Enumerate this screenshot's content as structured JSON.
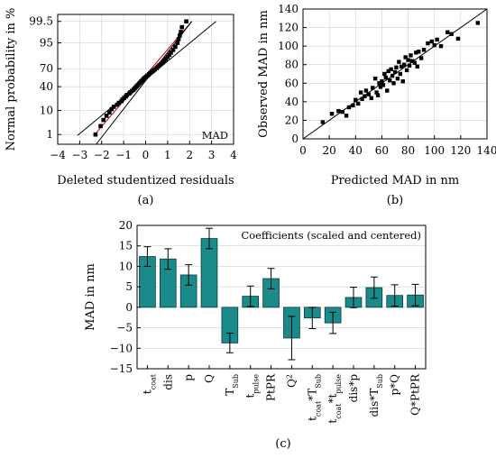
{
  "colors": {
    "bar_fill": "#1b8a8a",
    "bar_stroke": "#0a3a3a",
    "marker": "#000000",
    "fit_line_red": "#cc0000",
    "band_line": "#000000",
    "grid": "#d0d0d0"
  },
  "chart_data": [
    {
      "id": "a",
      "type": "scatter",
      "caption": "(a)",
      "xlabel": "Deleted studentized residuals",
      "ylabel": "Normal probability in %",
      "annotation": "MAD",
      "xlim": [
        -4,
        4
      ],
      "xticks": [
        -4,
        -3,
        -2,
        -1,
        0,
        1,
        2,
        3,
        4
      ],
      "yticks": [
        {
          "label": "1",
          "p": 1
        },
        {
          "label": "10",
          "p": 10
        },
        {
          "label": "40",
          "p": 40
        },
        {
          "label": "70",
          "p": 70
        },
        {
          "label": "95",
          "p": 95
        },
        {
          "label": "99.5",
          "p": 99.5
        }
      ],
      "y_scale": "normal-probability",
      "grid": true,
      "points": [
        [
          -2.28,
          1
        ],
        [
          -2.05,
          2.5
        ],
        [
          -1.92,
          4.5
        ],
        [
          -1.78,
          6.5
        ],
        [
          -1.65,
          8.5
        ],
        [
          -1.55,
          11
        ],
        [
          -1.45,
          13
        ],
        [
          -1.3,
          15
        ],
        [
          -1.22,
          17
        ],
        [
          -1.1,
          19
        ],
        [
          -1.05,
          21
        ],
        [
          -0.98,
          23
        ],
        [
          -0.9,
          25
        ],
        [
          -0.85,
          27
        ],
        [
          -0.75,
          29
        ],
        [
          -0.7,
          31
        ],
        [
          -0.62,
          33
        ],
        [
          -0.55,
          35
        ],
        [
          -0.5,
          37
        ],
        [
          -0.45,
          39
        ],
        [
          -0.4,
          41
        ],
        [
          -0.35,
          43
        ],
        [
          -0.3,
          45
        ],
        [
          -0.25,
          47
        ],
        [
          -0.2,
          49
        ],
        [
          -0.15,
          51
        ],
        [
          -0.1,
          53
        ],
        [
          -0.05,
          55
        ],
        [
          0.02,
          57
        ],
        [
          0.08,
          59
        ],
        [
          0.15,
          61
        ],
        [
          0.2,
          63
        ],
        [
          0.28,
          65
        ],
        [
          0.35,
          67
        ],
        [
          0.42,
          69
        ],
        [
          0.5,
          71
        ],
        [
          0.55,
          73
        ],
        [
          0.62,
          75
        ],
        [
          0.7,
          77
        ],
        [
          0.78,
          79
        ],
        [
          0.85,
          81
        ],
        [
          0.92,
          83
        ],
        [
          1.0,
          85
        ],
        [
          1.08,
          87
        ],
        [
          1.15,
          89
        ],
        [
          1.25,
          91
        ],
        [
          1.35,
          93
        ],
        [
          1.45,
          95
        ],
        [
          1.5,
          96.5
        ],
        [
          1.55,
          97.5
        ],
        [
          1.6,
          98.3
        ],
        [
          1.65,
          99.0
        ],
        [
          1.85,
          99.5
        ]
      ],
      "lines": [
        {
          "style": "black",
          "x": [
            -3.1,
            3.2
          ],
          "p": [
            0.9,
            99.5
          ]
        },
        {
          "style": "red",
          "x": [
            -2.35,
            2.1
          ],
          "p": [
            0.9,
            99.5
          ]
        },
        {
          "style": "black",
          "x": [
            -2.25,
            2.1
          ],
          "p": [
            0.3,
            99.5
          ]
        }
      ]
    },
    {
      "id": "b",
      "type": "scatter",
      "caption": "(b)",
      "xlabel": "Predicted MAD in nm",
      "ylabel": "Observed MAD in nm",
      "xlim": [
        0,
        140
      ],
      "ylim": [
        0,
        140
      ],
      "xticks": [
        0,
        20,
        40,
        60,
        80,
        100,
        120,
        140
      ],
      "yticks": [
        0,
        20,
        40,
        60,
        80,
        100,
        120,
        140
      ],
      "grid": true,
      "reference_line": [
        [
          0,
          0
        ],
        [
          140,
          140
        ]
      ],
      "points": [
        [
          15,
          18
        ],
        [
          22,
          27
        ],
        [
          27,
          30
        ],
        [
          30,
          29
        ],
        [
          33,
          25
        ],
        [
          35,
          34
        ],
        [
          38,
          36
        ],
        [
          40,
          42
        ],
        [
          42,
          38
        ],
        [
          44,
          50
        ],
        [
          45,
          43
        ],
        [
          47,
          46
        ],
        [
          48,
          52
        ],
        [
          50,
          48
        ],
        [
          52,
          44
        ],
        [
          53,
          55
        ],
        [
          55,
          65
        ],
        [
          56,
          50
        ],
        [
          57,
          47
        ],
        [
          58,
          60
        ],
        [
          59,
          56
        ],
        [
          60,
          62
        ],
        [
          61,
          58
        ],
        [
          62,
          70
        ],
        [
          63,
          66
        ],
        [
          64,
          52
        ],
        [
          65,
          73
        ],
        [
          66,
          63
        ],
        [
          67,
          75
        ],
        [
          68,
          68
        ],
        [
          69,
          60
        ],
        [
          70,
          72
        ],
        [
          71,
          77
        ],
        [
          72,
          65
        ],
        [
          73,
          83
        ],
        [
          74,
          70
        ],
        [
          75,
          78
        ],
        [
          76,
          62
        ],
        [
          77,
          80
        ],
        [
          78,
          88
        ],
        [
          79,
          74
        ],
        [
          80,
          85
        ],
        [
          81,
          79
        ],
        [
          82,
          90
        ],
        [
          83,
          84
        ],
        [
          85,
          82
        ],
        [
          86,
          93
        ],
        [
          87,
          78
        ],
        [
          88,
          94
        ],
        [
          90,
          87
        ],
        [
          92,
          96
        ],
        [
          95,
          103
        ],
        [
          98,
          105
        ],
        [
          100,
          101
        ],
        [
          102,
          107
        ],
        [
          105,
          100
        ],
        [
          110,
          115
        ],
        [
          113,
          113
        ],
        [
          118,
          108
        ],
        [
          133,
          125
        ]
      ]
    },
    {
      "id": "c",
      "type": "bar",
      "caption": "(c)",
      "ylabel": "MAD in nm",
      "annotation": "Coefficients (scaled and centered)",
      "ylim": [
        -15,
        20
      ],
      "yticks": [
        -15,
        -10,
        -5,
        0,
        5,
        10,
        15,
        20
      ],
      "grid": true,
      "categories": [
        {
          "base": "t",
          "sub": "coat",
          "sup": ""
        },
        {
          "base": "dis",
          "sub": "",
          "sup": ""
        },
        {
          "base": "p",
          "sub": "",
          "sup": ""
        },
        {
          "base": "Q",
          "sub": "",
          "sup": ""
        },
        {
          "base": "T",
          "sub": "Sub",
          "sup": ""
        },
        {
          "base": "t",
          "sub": "pulse",
          "sup": ""
        },
        {
          "base": "PtPR",
          "sub": "",
          "sup": ""
        },
        {
          "base": "Q",
          "sub": "",
          "sup": "2"
        },
        {
          "base": "t",
          "sub": "coat",
          "sup": "",
          "tail": "*T",
          "tail_sub": "Sub"
        },
        {
          "base": "t",
          "sub": "coat",
          "sup": "",
          "tail": "*t",
          "tail_sub": "pulse"
        },
        {
          "base": "dis*p",
          "sub": "",
          "sup": ""
        },
        {
          "base": "dis*T",
          "sub": "Sub",
          "sup": ""
        },
        {
          "base": "p*Q",
          "sub": "",
          "sup": ""
        },
        {
          "base": "Q*PtPR",
          "sub": "",
          "sup": ""
        }
      ],
      "values": [
        12.4,
        11.8,
        7.9,
        16.8,
        -8.7,
        2.7,
        7.0,
        -7.5,
        -2.6,
        -3.8,
        2.4,
        4.8,
        2.9,
        3.0
      ],
      "errors": [
        2.4,
        2.5,
        2.5,
        2.5,
        2.4,
        2.5,
        2.5,
        5.3,
        2.6,
        2.6,
        2.5,
        2.6,
        2.6,
        2.6
      ]
    }
  ]
}
